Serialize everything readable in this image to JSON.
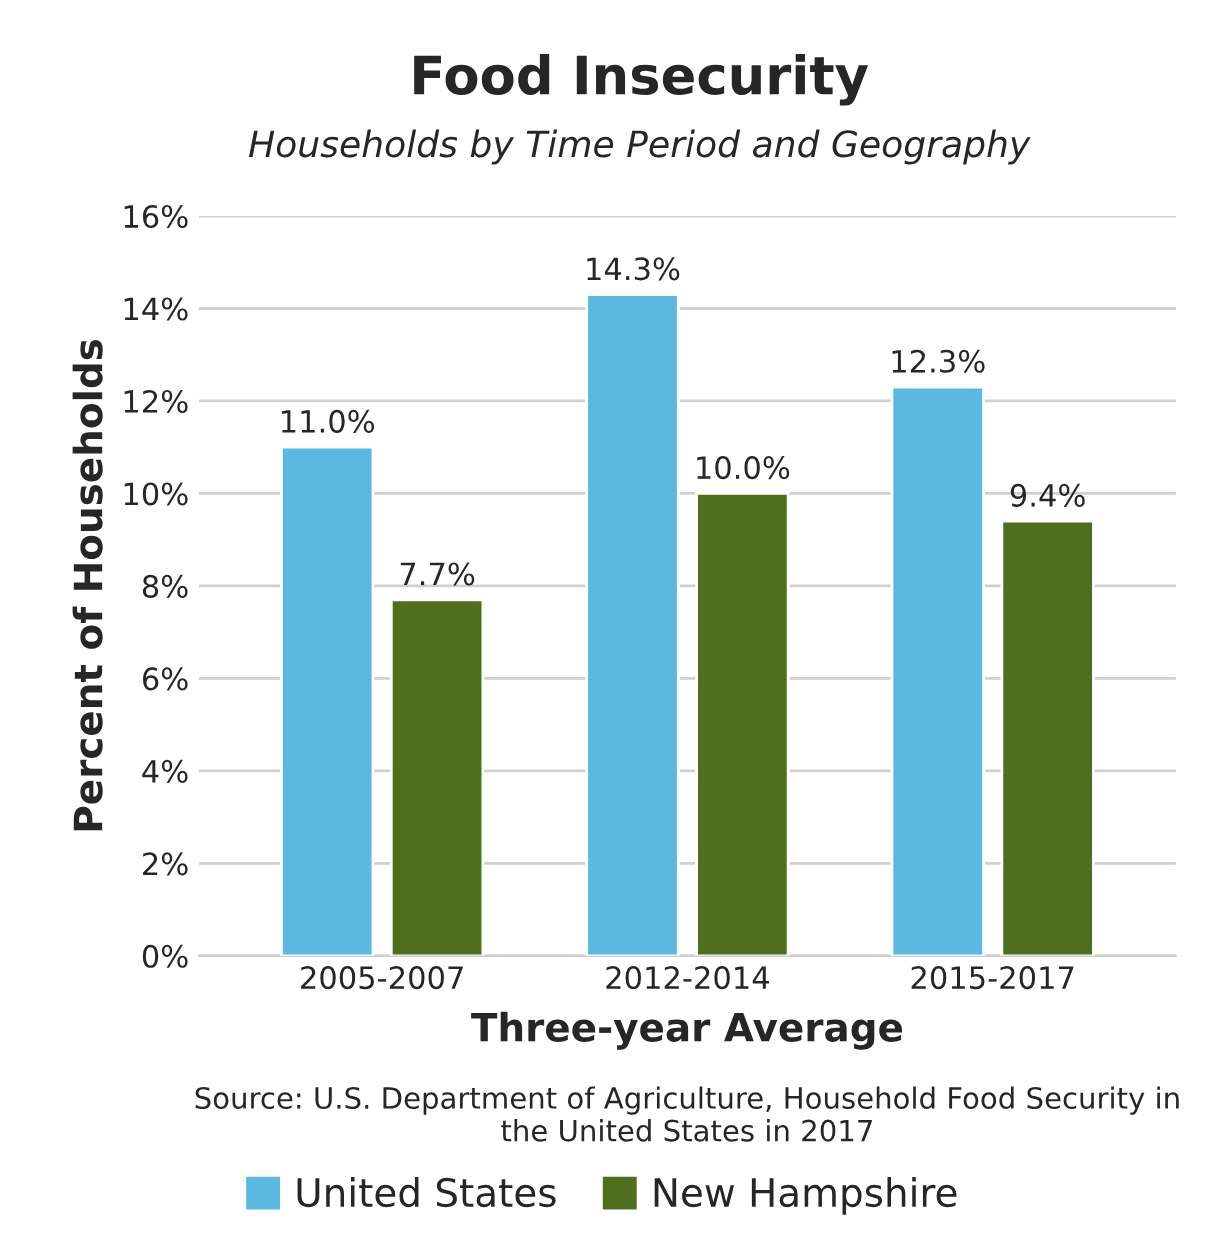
{
  "chart_data": {
    "type": "bar",
    "title": "Food Insecurity",
    "subtitle": "Households by Time Period and Geography",
    "xlabel": "Three-year Average",
    "ylabel": "Percent of Households",
    "annotations": [
      "Source: U.S. Department of Agriculture, Household Food Security in the United States in 2017"
    ],
    "categories": [
      "2005-2007",
      "2012-2014",
      "2015-2017"
    ],
    "series": [
      {
        "name": "United States",
        "color": "#5bb9e1",
        "values": [
          11.0,
          14.3,
          12.3
        ],
        "value_labels": [
          "11.0%",
          "14.3%",
          "12.3%"
        ]
      },
      {
        "name": "New Hampshire",
        "color": "#4f6f1f",
        "values": [
          7.7,
          10.0,
          9.4
        ],
        "value_labels": [
          "7.7%",
          "10.0%",
          "9.4%"
        ]
      }
    ],
    "ylim": [
      0,
      16
    ],
    "yticks": [
      {
        "value": 0,
        "label": "0%"
      },
      {
        "value": 2,
        "label": "2%"
      },
      {
        "value": 4,
        "label": "4%"
      },
      {
        "value": 6,
        "label": "6%"
      },
      {
        "value": 8,
        "label": "8%"
      },
      {
        "value": 10,
        "label": "10%"
      },
      {
        "value": 12,
        "label": "12%"
      },
      {
        "value": 14,
        "label": "14%"
      },
      {
        "value": 16,
        "label": "16%"
      }
    ],
    "grid": "y",
    "legend": "bottom"
  }
}
